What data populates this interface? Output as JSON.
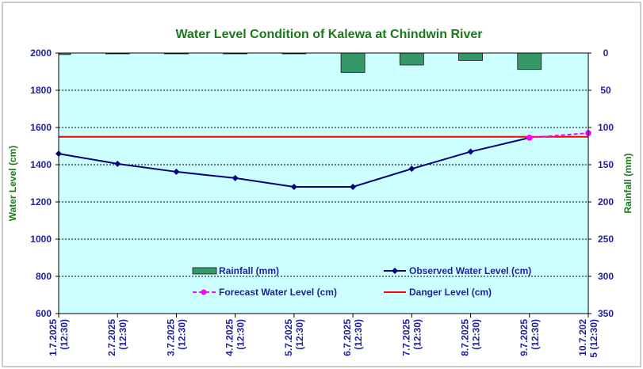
{
  "chart_data": {
    "type": "bar+line",
    "title": "Water Level Condition of Kalewa at Chindwin River",
    "x_categories": [
      [
        "1.7.2025",
        "(12:30)"
      ],
      [
        "2.7.2025",
        "(12:30)"
      ],
      [
        "3.7.2025",
        "(12:30)"
      ],
      [
        "4.7.2025",
        "(12:30)"
      ],
      [
        "5.7.2025",
        "(12:30)"
      ],
      [
        "6.7.2025",
        "(12:30)"
      ],
      [
        "7.7.2025",
        "(12:30)"
      ],
      [
        "8.7.2025",
        "(12:30)"
      ],
      [
        "9.7.2025",
        "(12:30)"
      ],
      [
        "10.7.202",
        "5 (12:30)"
      ]
    ],
    "y_left": {
      "label": "Water Level (cm)",
      "min": 600,
      "max": 2000,
      "step": 200
    },
    "y_right": {
      "label": "Rainfall (mm)",
      "min": 0,
      "max": 350,
      "step": 50,
      "inverted": true
    },
    "grid": true,
    "colors": {
      "plot_bg": "#ccffff",
      "rainfall": "#339966",
      "observed": "#000080",
      "forecast": "#ff00ff",
      "danger": "#ff0000",
      "title": "#1a7a1a",
      "ticks": "#1f1f9f"
    },
    "series": {
      "rainfall": {
        "name": "Rainfall (mm)",
        "values": [
          2,
          0,
          0,
          0,
          0,
          26,
          16,
          10,
          22,
          null
        ]
      },
      "observed": {
        "name": "Observed Water Level (cm)",
        "values": [
          1459,
          1405,
          1362,
          1328,
          1281,
          1281,
          1378,
          1470,
          1545,
          null
        ]
      },
      "forecast": {
        "name": "Forecast Water Level (cm)",
        "values": [
          null,
          null,
          null,
          null,
          null,
          null,
          null,
          null,
          1545,
          1570
        ]
      },
      "danger": {
        "name": "Danger Level (cm)",
        "value": 1550
      }
    }
  }
}
